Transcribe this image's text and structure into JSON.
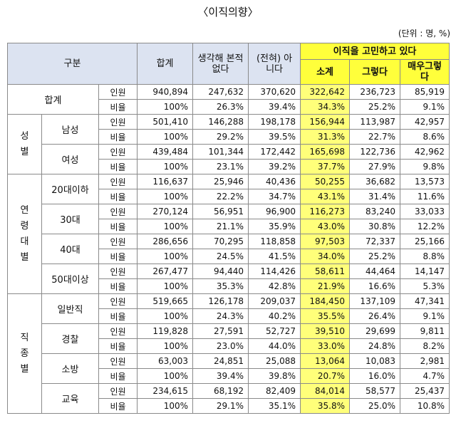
{
  "title": "〈이직의향〉",
  "unit": "(단위 : 명, %)",
  "header": {
    "category": "구분",
    "total": "합계",
    "never_thought": "생각해 본적없다",
    "not_at_all": "(전혀) 아니다",
    "considering": "이직을 고민하고 있다",
    "subtotal": "소계",
    "yes": "그렇다",
    "very_yes": "매우그렇다"
  },
  "row_types": {
    "count": "인원",
    "ratio": "비율"
  },
  "groups": [
    {
      "label": "합계",
      "items": [
        {
          "label": "",
          "count": [
            "940,894",
            "247,632",
            "370,620",
            "322,642",
            "236,723",
            "85,919"
          ],
          "ratio": [
            "100%",
            "26.3%",
            "39.4%",
            "34.3%",
            "25.2%",
            "9.1%"
          ]
        }
      ]
    },
    {
      "label": "성별",
      "chars": [
        "성",
        "별"
      ],
      "items": [
        {
          "label": "남성",
          "count": [
            "501,410",
            "146,288",
            "198,178",
            "156,944",
            "113,987",
            "42,957"
          ],
          "ratio": [
            "100%",
            "29.2%",
            "39.5%",
            "31.3%",
            "22.7%",
            "8.6%"
          ]
        },
        {
          "label": "여성",
          "count": [
            "439,484",
            "101,344",
            "172,442",
            "165,698",
            "122,736",
            "42,962"
          ],
          "ratio": [
            "100%",
            "23.1%",
            "39.2%",
            "37.7%",
            "27.9%",
            "9.8%"
          ]
        }
      ]
    },
    {
      "label": "연령대별",
      "chars": [
        "연",
        "령",
        "대",
        "별"
      ],
      "items": [
        {
          "label": "20대이하",
          "count": [
            "116,637",
            "25,946",
            "40,436",
            "50,255",
            "36,682",
            "13,573"
          ],
          "ratio": [
            "100%",
            "22.2%",
            "34.7%",
            "43.1%",
            "31.4%",
            "11.6%"
          ]
        },
        {
          "label": "30대",
          "count": [
            "270,124",
            "56,951",
            "96,900",
            "116,273",
            "83,240",
            "33,033"
          ],
          "ratio": [
            "100%",
            "21.1%",
            "35.9%",
            "43.0%",
            "30.8%",
            "12.2%"
          ]
        },
        {
          "label": "40대",
          "count": [
            "286,656",
            "70,295",
            "118,858",
            "97,503",
            "72,337",
            "25,166"
          ],
          "ratio": [
            "100%",
            "24.5%",
            "41.5%",
            "34.0%",
            "25.2%",
            "8.8%"
          ]
        },
        {
          "label": "50대이상",
          "count": [
            "267,477",
            "94,440",
            "114,426",
            "58,611",
            "44,464",
            "14,147"
          ],
          "ratio": [
            "100%",
            "35.3%",
            "42.8%",
            "21.9%",
            "16.6%",
            "5.3%"
          ]
        }
      ]
    },
    {
      "label": "직종별",
      "chars": [
        "직",
        "종",
        "별"
      ],
      "items": [
        {
          "label": "일반직",
          "count": [
            "519,665",
            "126,178",
            "209,037",
            "184,450",
            "137,109",
            "47,341"
          ],
          "ratio": [
            "100%",
            "24.3%",
            "40.2%",
            "35.5%",
            "26.4%",
            "9.1%"
          ]
        },
        {
          "label": "경찰",
          "count": [
            "119,828",
            "27,591",
            "52,727",
            "39,510",
            "29,699",
            "9,811"
          ],
          "ratio": [
            "100%",
            "23.0%",
            "44.0%",
            "33.0%",
            "24.8%",
            "8.2%"
          ]
        },
        {
          "label": "소방",
          "count": [
            "63,003",
            "24,851",
            "25,088",
            "13,064",
            "10,083",
            "2,981"
          ],
          "ratio": [
            "100%",
            "39.4%",
            "39.8%",
            "20.7%",
            "16.0%",
            "4.7%"
          ]
        },
        {
          "label": "교육",
          "count": [
            "234,615",
            "68,192",
            "82,409",
            "84,014",
            "58,577",
            "25,437"
          ],
          "ratio": [
            "100%",
            "29.1%",
            "35.1%",
            "35.8%",
            "25.0%",
            "10.8%"
          ]
        }
      ]
    }
  ]
}
